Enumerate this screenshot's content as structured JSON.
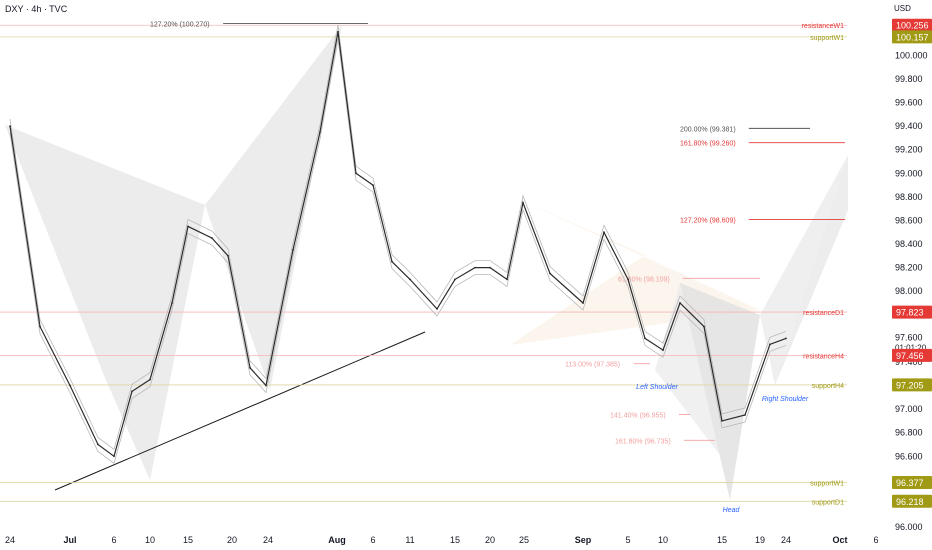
{
  "header": {
    "symbol_title": "DXY · 4h · TVC",
    "axis_unit": "USD"
  },
  "chart_data": {
    "type": "line",
    "title": "DXY · 4h · TVC",
    "xlabel": "",
    "ylabel": "",
    "ylim": [
      96.0,
      100.3
    ],
    "grid": false,
    "x_ticks": [
      "24",
      "Jul",
      "6",
      "10",
      "15",
      "20",
      "24",
      "Aug",
      "6",
      "11",
      "15",
      "20",
      "25",
      "Sep",
      "5",
      "10",
      "15",
      "19",
      "24",
      "Oct",
      "6"
    ],
    "y_ticks": [
      96.0,
      96.2,
      96.4,
      96.6,
      96.8,
      97.0,
      97.2,
      97.4,
      97.6,
      97.8,
      98.0,
      98.2,
      98.4,
      98.6,
      98.8,
      99.0,
      99.2,
      99.4,
      99.6,
      99.8,
      100.0
    ],
    "x": [
      "Jun 24",
      "Jun 28",
      "Jul 1",
      "Jul 4",
      "Jul 6",
      "Jul 8",
      "Jul 10",
      "Jul 13",
      "Jul 15",
      "Jul 18",
      "Jul 20",
      "Jul 22",
      "Jul 24",
      "Jul 27",
      "Jul 30",
      "Aug 1",
      "Aug 4",
      "Aug 6",
      "Aug 8",
      "Aug 11",
      "Aug 13",
      "Aug 15",
      "Aug 18",
      "Aug 20",
      "Aug 23",
      "Aug 25",
      "Aug 28",
      "Sep 1",
      "Sep 3",
      "Sep 5",
      "Sep 8",
      "Sep 10",
      "Sep 12",
      "Sep 15",
      "Sep 17",
      "Sep 19",
      "Sep 22",
      "Sep 24"
    ],
    "series": [
      {
        "values": [
          99.4,
          97.7,
          97.2,
          96.7,
          96.6,
          97.15,
          97.25,
          97.9,
          98.55,
          98.45,
          98.3,
          97.35,
          97.2,
          98.35,
          99.35,
          100.2,
          99.0,
          98.9,
          98.25,
          98.1,
          97.85,
          98.1,
          98.2,
          98.2,
          98.1,
          98.75,
          98.15,
          97.9,
          98.5,
          98.1,
          97.6,
          97.5,
          97.9,
          97.7,
          96.9,
          96.95,
          97.55,
          97.6
        ]
      }
    ],
    "price_labels": [
      {
        "name": "resistanceW1",
        "value": "100.256",
        "color": "#e53935"
      },
      {
        "name": "supportW1",
        "value": "100.157",
        "color": "#a09a14"
      },
      {
        "name": "resistanceD1",
        "value": "97.823",
        "color": "#e53935"
      },
      {
        "name": "",
        "value": "97.600",
        "color": "#131722",
        "extra": "01:01:20"
      },
      {
        "name": "resistanceH4",
        "value": "97.456",
        "color": "#e53935"
      },
      {
        "name": "supportH4",
        "value": "97.205",
        "color": "#a09a14"
      },
      {
        "name": "supportW1",
        "value": "96.377",
        "color": "#a09a14"
      },
      {
        "name": "supportD1",
        "value": "96.218",
        "color": "#a09a14"
      }
    ],
    "annotations": [
      {
        "text": "127.20% (100.270)",
        "value": 100.27,
        "color": "#555555"
      },
      {
        "text": "200.00% (99.381)",
        "value": 99.381,
        "color": "#555555"
      },
      {
        "text": "161.80% (99.260)",
        "value": 99.26,
        "color": "#e53935"
      },
      {
        "text": "127.20% (98.609)",
        "value": 98.609,
        "color": "#e53935"
      },
      {
        "text": "61.80% (98.109)",
        "value": 98.109,
        "color": "#f2a0a0"
      },
      {
        "text": "113.00% (97.385)",
        "value": 97.385,
        "color": "#f2a0a0"
      },
      {
        "text": "141.40% (96.955)",
        "value": 96.955,
        "color": "#f2a0a0"
      },
      {
        "text": "161.80% (96.735)",
        "value": 96.735,
        "color": "#f2a0a0"
      },
      {
        "text": "Left Shoulder",
        "value": 97.2,
        "color": "#2962ff"
      },
      {
        "text": "Right Shoulder",
        "value": 97.1,
        "color": "#2962ff"
      },
      {
        "text": "Head",
        "value": 96.07,
        "color": "#2962ff"
      }
    ],
    "colors": {
      "price_line": "#2b2b2b",
      "pattern_fill": "#e6e6e6",
      "resistance": "#e53935",
      "support": "#a09a14",
      "label_blue": "#2962ff"
    }
  }
}
